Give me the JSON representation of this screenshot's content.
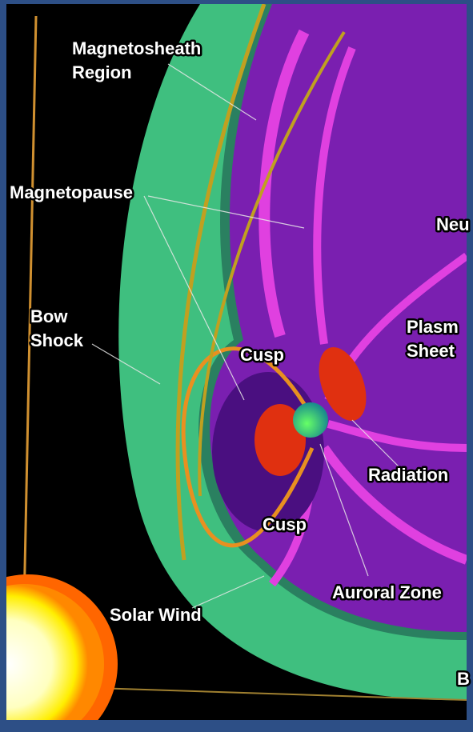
{
  "labels": [
    {
      "lines": [
        "Magnetosheath",
        "Region"
      ]
    },
    {
      "lines": [
        "Magnetopause"
      ]
    },
    {
      "lines": [
        "Bow",
        "Shock"
      ]
    },
    {
      "lines": [
        "Cusp"
      ]
    },
    {
      "lines": [
        "Cusp"
      ]
    },
    {
      "lines": [
        "Neu"
      ]
    },
    {
      "lines": [
        "Plasm",
        "Sheet"
      ]
    },
    {
      "lines": [
        "Radiation"
      ]
    },
    {
      "lines": [
        "Auroral Zone"
      ]
    },
    {
      "lines": [
        "Solar Wind"
      ]
    },
    {
      "lines": [
        "B"
      ]
    }
  ]
}
